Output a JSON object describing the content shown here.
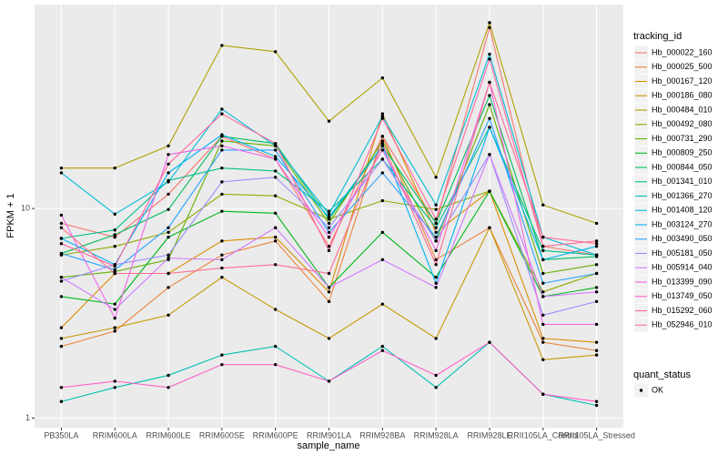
{
  "chart_data": {
    "type": "line",
    "x_label": "sample_name",
    "y_label": "FPKM + 1",
    "log_y": true,
    "grid": true,
    "legend_title": "tracking_id",
    "shape_legend": {
      "title": "quant_status",
      "items": [
        "OK"
      ]
    },
    "categories": [
      "PB350LA",
      "RRIM600LA",
      "RRIM600LE",
      "RRIM600SE",
      "RRIM600PE",
      "RRIM901LA",
      "RRIM928BA",
      "RRIM928LA",
      "RRIM928LE",
      "RRII105LA_Control",
      "RRII105LA_Stressed"
    ],
    "ylim": [
      0.9,
      94
    ],
    "yticks": [
      1,
      10
    ],
    "series": [
      {
        "name": "Hb_000022_160",
        "color": "#F8766D",
        "values": [
          8.5,
          7.3,
          11.7,
          22.1,
          17.2,
          6.6,
          22.1,
          8.5,
          73,
          6.6,
          6.0
        ]
      },
      {
        "name": "Hb_000025_500",
        "color": "#EC8239",
        "values": [
          2.2,
          2.6,
          4.2,
          6.0,
          7.0,
          3.6,
          22.1,
          5.7,
          8.1,
          2.3,
          2.1
        ]
      },
      {
        "name": "Hb_000167_120",
        "color": "#DB8E00",
        "values": [
          2.7,
          4.9,
          4.9,
          7.0,
          7.3,
          4.0,
          28.3,
          7.7,
          12.1,
          2.4,
          2.3
        ]
      },
      {
        "name": "Hb_000186_080",
        "color": "#C79800",
        "values": [
          2.4,
          2.7,
          3.1,
          4.7,
          3.3,
          2.4,
          3.5,
          2.4,
          8.1,
          1.9,
          2.0
        ]
      },
      {
        "name": "Hb_000484_010",
        "color": "#AEA200",
        "values": [
          15.6,
          15.6,
          19.9,
          60,
          56,
          26.1,
          42,
          14.1,
          77,
          10.4,
          8.5
        ]
      },
      {
        "name": "Hb_000492_080",
        "color": "#8FAA00",
        "values": [
          6.0,
          6.6,
          7.7,
          11.7,
          11.5,
          8.9,
          10.9,
          9.9,
          12.1,
          4.0,
          4.9
        ]
      },
      {
        "name": "Hb_000731_290",
        "color": "#64B200",
        "values": [
          4.7,
          5.0,
          5.7,
          21,
          19.9,
          8.5,
          21,
          7.0,
          31.3,
          4.9,
          5.4
        ]
      },
      {
        "name": "Hb_000809_250",
        "color": "#00B81B",
        "values": [
          3.8,
          3.5,
          7.3,
          9.7,
          9.5,
          4.2,
          7.7,
          4.7,
          12.1,
          3.8,
          4.2
        ]
      },
      {
        "name": "Hb_000844_050",
        "color": "#00BD5C",
        "values": [
          6.1,
          7.5,
          9.9,
          22.1,
          20.4,
          8.9,
          19.9,
          8.5,
          34.6,
          5.7,
          5.9
        ]
      },
      {
        "name": "Hb_001341_010",
        "color": "#00C08D",
        "values": [
          7.2,
          7.9,
          13.6,
          15.6,
          15.1,
          9.7,
          17.2,
          8.1,
          24.4,
          6.3,
          6.0
        ]
      },
      {
        "name": "Hb_001366_270",
        "color": "#00C1B2",
        "values": [
          1.2,
          1.4,
          1.6,
          2.0,
          2.2,
          1.5,
          2.2,
          1.4,
          2.3,
          1.3,
          1.15
        ]
      },
      {
        "name": "Hb_001408_120",
        "color": "#00BCD6",
        "values": [
          14.8,
          9.4,
          13.4,
          29.8,
          19.9,
          9.4,
          27.5,
          10.4,
          54.5,
          7.3,
          6.0
        ]
      },
      {
        "name": "Hb_003124_270",
        "color": "#00B3F2",
        "values": [
          7.2,
          5.4,
          14.8,
          22.5,
          17.7,
          9.1,
          19.9,
          4.4,
          24.4,
          5.7,
          6.6
        ]
      },
      {
        "name": "Hb_003490_050",
        "color": "#29A3FF",
        "values": [
          6.1,
          5.1,
          8.1,
          19.0,
          19.0,
          7.7,
          14.8,
          7.3,
          26.9,
          4.4,
          4.9
        ]
      },
      {
        "name": "Hb_005181_050",
        "color": "#9C8DFF",
        "values": [
          4.5,
          5.4,
          6.0,
          13.4,
          14.1,
          8.1,
          17.2,
          7.0,
          18.1,
          3.1,
          3.6
        ]
      },
      {
        "name": "Hb_005914_040",
        "color": "#D277FF",
        "values": [
          4.7,
          3.3,
          5.8,
          5.7,
          8.1,
          4.2,
          5.7,
          4.2,
          18.1,
          3.8,
          4.0
        ]
      },
      {
        "name": "Hb_013399_090",
        "color": "#F166E8",
        "values": [
          9.3,
          3.0,
          18.1,
          19.9,
          17.2,
          7.3,
          19.0,
          6.3,
          40,
          2.8,
          2.8
        ]
      },
      {
        "name": "Hb_013749_050",
        "color": "#FF61C7",
        "values": [
          1.4,
          1.5,
          1.4,
          1.8,
          1.8,
          1.5,
          2.1,
          1.6,
          2.3,
          1.3,
          1.2
        ]
      },
      {
        "name": "Hb_015292_060",
        "color": "#FF689E",
        "values": [
          6.8,
          5.3,
          16.3,
          28.3,
          20.4,
          6.3,
          26.9,
          8.9,
          51.6,
          6.6,
          7.0
        ]
      },
      {
        "name": "Hb_052946_010",
        "color": "#FF6C91",
        "values": [
          8.1,
          4.9,
          4.9,
          5.2,
          5.4,
          4.9,
          20.4,
          5.4,
          40,
          7.3,
          6.8
        ]
      }
    ]
  }
}
